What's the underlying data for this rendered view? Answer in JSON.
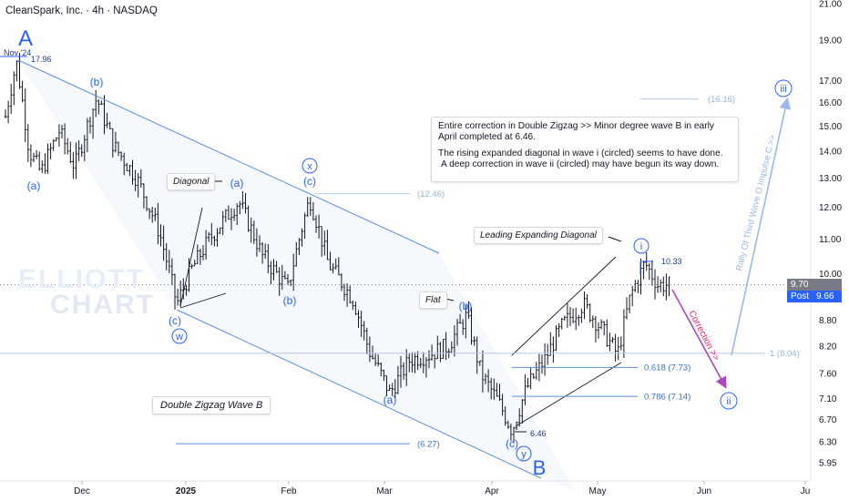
{
  "header": {
    "title": "CleanSpark, Inc. · 4h · NASDAQ"
  },
  "watermark": {
    "line1": "ELLIOTT",
    "line2": "CHART"
  },
  "chart_data": {
    "type": "candlestick",
    "symbol": "CleanSpark, Inc.",
    "timeframe": "4h",
    "exchange": "NASDAQ",
    "y_scale": "log",
    "ylim": [
      5.7,
      21.0
    ],
    "y_ticks": [
      "21.00",
      "19.00",
      "17.00",
      "16.00",
      "15.00",
      "14.00",
      "13.00",
      "12.00",
      "11.00",
      "10.00",
      "8.80",
      "8.20",
      "7.60",
      "7.10",
      "6.70",
      "6.30",
      "5.95"
    ],
    "x_ticks": [
      {
        "label": "Dec",
        "bold": false
      },
      {
        "label": "2025",
        "bold": true
      },
      {
        "label": "Feb",
        "bold": false
      },
      {
        "label": "Mar",
        "bold": false
      },
      {
        "label": "Apr",
        "bold": false
      },
      {
        "label": "May",
        "bold": false
      },
      {
        "label": "Jun",
        "bold": false
      },
      {
        "label": "Ju",
        "bold": false
      }
    ],
    "price_tags": [
      {
        "label": "",
        "value": "9.70",
        "color": "#787b86"
      },
      {
        "label": "Post",
        "value": "9.66",
        "color": "#2962ff"
      }
    ],
    "key_prices": [
      {
        "label": "17.96",
        "value": 17.96
      },
      {
        "label": "10.33",
        "value": 10.33
      },
      {
        "label": "6.46",
        "value": 6.46
      }
    ],
    "levels": [
      {
        "label": "(16.16)",
        "value": 16.16
      },
      {
        "label": "(12.46)",
        "value": 12.46
      },
      {
        "label": "1 (8.04)",
        "value": 8.04
      },
      {
        "label": "0.618 (7.73)",
        "value": 7.73
      },
      {
        "label": "0.786 (7.14)",
        "value": 7.14
      },
      {
        "label": "(6.27)",
        "value": 6.27
      }
    ],
    "wave_labels": [
      {
        "text": "A",
        "style": "big"
      },
      {
        "text": "(b)",
        "style": "paren"
      },
      {
        "text": "(a)",
        "style": "paren"
      },
      {
        "text": "(a)",
        "style": "paren"
      },
      {
        "text": "x",
        "style": "circle"
      },
      {
        "text": "(c)",
        "style": "paren"
      },
      {
        "text": "(b)",
        "style": "paren"
      },
      {
        "text": "(c)",
        "style": "paren"
      },
      {
        "text": "w",
        "style": "circle"
      },
      {
        "text": "(b)",
        "style": "paren"
      },
      {
        "text": "(a)",
        "style": "paren"
      },
      {
        "text": "(c)",
        "style": "paren"
      },
      {
        "text": "y",
        "style": "circle"
      },
      {
        "text": "B",
        "style": "big"
      },
      {
        "text": "i",
        "style": "circle"
      },
      {
        "text": "ii",
        "style": "circle"
      },
      {
        "text": "iii",
        "style": "circle"
      }
    ],
    "date_tag": "Nov '24",
    "annotations": {
      "diagonal": "Diagonal",
      "flat": "Flat",
      "leading": "Leading Expanding Diagonal",
      "double_zigzag": "Double Zigzag Wave B",
      "correction": "Correction >>",
      "rally": "Rally Of Third Wave O Impulse C >>",
      "note_line1": "Entire correction in Double Zigzag >> Minor degree wave B in early April completed at 6.46.",
      "note_line2": "The rising expanded diagonal in wave i (circled) seems to have done.",
      "note_line3": "A deep correction in wave ii (circled) may have begun its way down."
    },
    "colors": {
      "wave": "#2962ff",
      "candle": "#131722",
      "channel": "#5b8fd9",
      "correction": "#e91e63",
      "projection": "#9cb8e8"
    }
  }
}
